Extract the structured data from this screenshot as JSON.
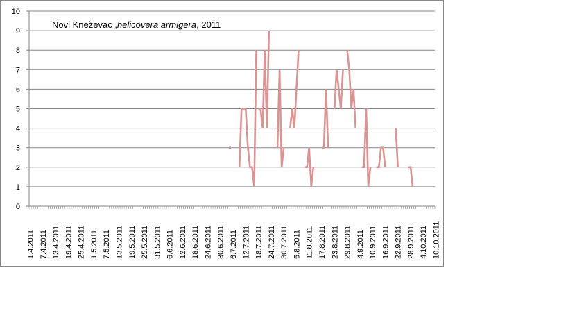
{
  "chart_data": {
    "type": "line",
    "title_parts": {
      "location": "Novi Kneževac ,",
      "species": "helicovera armigera",
      "year": ", 2011"
    },
    "xlabel": "",
    "ylabel": "",
    "ylim": [
      0,
      10
    ],
    "y_ticks": [
      "0",
      "1",
      "2",
      "3",
      "4",
      "5",
      "6",
      "7",
      "8",
      "9",
      "10"
    ],
    "x_range": [
      "2011-04-01",
      "2011-10-10"
    ],
    "x_tick_labels": [
      "1.4.2011",
      "7.4.2011",
      "13.4.2011",
      "19.4.2011",
      "25.4.2011",
      "1.5.2011",
      "7.5.2011",
      "13.5.2011",
      "19.5.2011",
      "25.5.2011",
      "31.5.2011",
      "6.6.2011",
      "12.6.2011",
      "18.6.2011",
      "24.6.2011",
      "30.6.2011",
      "6.7.2011",
      "12.7.2011",
      "18.7.2011",
      "24.7.2011",
      "30.7.2011",
      "5.8.2011",
      "11.8.2011",
      "17.8.2011",
      "23.8.2011",
      "29.8.2011",
      "4.9.2011",
      "10.9.2011",
      "16.9.2011",
      "22.9.2011",
      "28.9.2011",
      "4.10.2011",
      "10.10.2011"
    ],
    "grid": true,
    "legend": "none",
    "series_color": "#D99594",
    "segments": [
      [
        [
          "2011-07-04",
          3
        ],
        [
          "2011-07-05",
          3
        ]
      ],
      [
        [
          "2011-07-09",
          2
        ],
        [
          "2011-07-10",
          5
        ],
        [
          "2011-07-11",
          5
        ],
        [
          "2011-07-12",
          5
        ],
        [
          "2011-07-13",
          3
        ],
        [
          "2011-07-14",
          2
        ],
        [
          "2011-07-15",
          2
        ],
        [
          "2011-07-16",
          1
        ],
        [
          "2011-07-17",
          8
        ]
      ],
      [
        [
          "2011-07-18",
          5
        ],
        [
          "2011-07-19",
          5
        ],
        [
          "2011-07-20",
          4
        ],
        [
          "2011-07-21",
          8
        ],
        [
          "2011-07-22",
          4
        ],
        [
          "2011-07-23",
          9
        ]
      ],
      [
        [
          "2011-07-27",
          3
        ],
        [
          "2011-07-28",
          7
        ],
        [
          "2011-07-29",
          2
        ],
        [
          "2011-07-30",
          3
        ]
      ],
      [
        [
          "2011-08-02",
          4
        ],
        [
          "2011-08-03",
          5
        ],
        [
          "2011-08-04",
          4
        ],
        [
          "2011-08-05",
          6
        ],
        [
          "2011-08-06",
          8
        ]
      ],
      [
        [
          "2011-08-09",
          2
        ],
        [
          "2011-08-10",
          2
        ],
        [
          "2011-08-11",
          3
        ],
        [
          "2011-08-12",
          1
        ],
        [
          "2011-08-13",
          2
        ]
      ],
      [
        [
          "2011-08-17",
          3
        ],
        [
          "2011-08-18",
          3
        ],
        [
          "2011-08-19",
          6
        ],
        [
          "2011-08-20",
          3
        ]
      ],
      [
        [
          "2011-08-23",
          5
        ],
        [
          "2011-08-24",
          7
        ],
        [
          "2011-08-25",
          6
        ],
        [
          "2011-08-26",
          5
        ],
        [
          "2011-08-27",
          7
        ]
      ],
      [
        [
          "2011-08-29",
          8
        ],
        [
          "2011-08-30",
          7
        ],
        [
          "2011-08-31",
          5
        ],
        [
          "2011-09-01",
          6
        ],
        [
          "2011-09-02",
          4
        ]
      ],
      [
        [
          "2011-09-05",
          2
        ],
        [
          "2011-09-06",
          2
        ],
        [
          "2011-09-07",
          5
        ],
        [
          "2011-09-08",
          1
        ],
        [
          "2011-09-09",
          2
        ]
      ],
      [
        [
          "2011-09-12",
          2
        ],
        [
          "2011-09-13",
          2
        ],
        [
          "2011-09-14",
          3
        ],
        [
          "2011-09-15",
          3
        ],
        [
          "2011-09-16",
          2
        ]
      ],
      [
        [
          "2011-09-21",
          4
        ],
        [
          "2011-09-22",
          2
        ]
      ],
      [
        [
          "2011-09-27",
          2
        ],
        [
          "2011-09-28",
          2
        ],
        [
          "2011-09-29",
          1
        ]
      ]
    ]
  }
}
